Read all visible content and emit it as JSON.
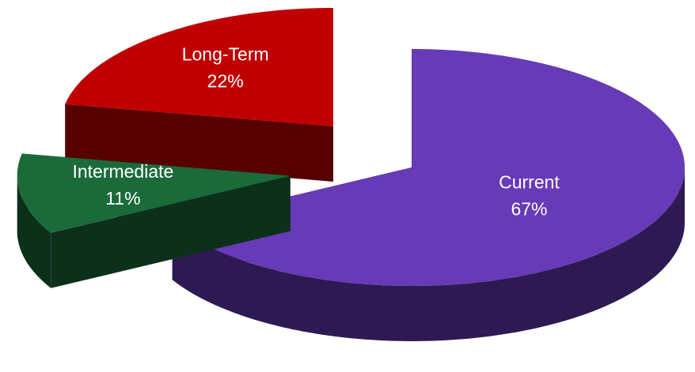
{
  "chart_data": {
    "type": "pie",
    "categories": [
      "Current",
      "Intermediate",
      "Long-Term"
    ],
    "values": [
      67,
      11,
      22
    ],
    "value_labels": [
      "67%",
      "11%",
      "22%"
    ],
    "colors": [
      "#673ab7",
      "#1b6b3a",
      "#c00000"
    ]
  }
}
